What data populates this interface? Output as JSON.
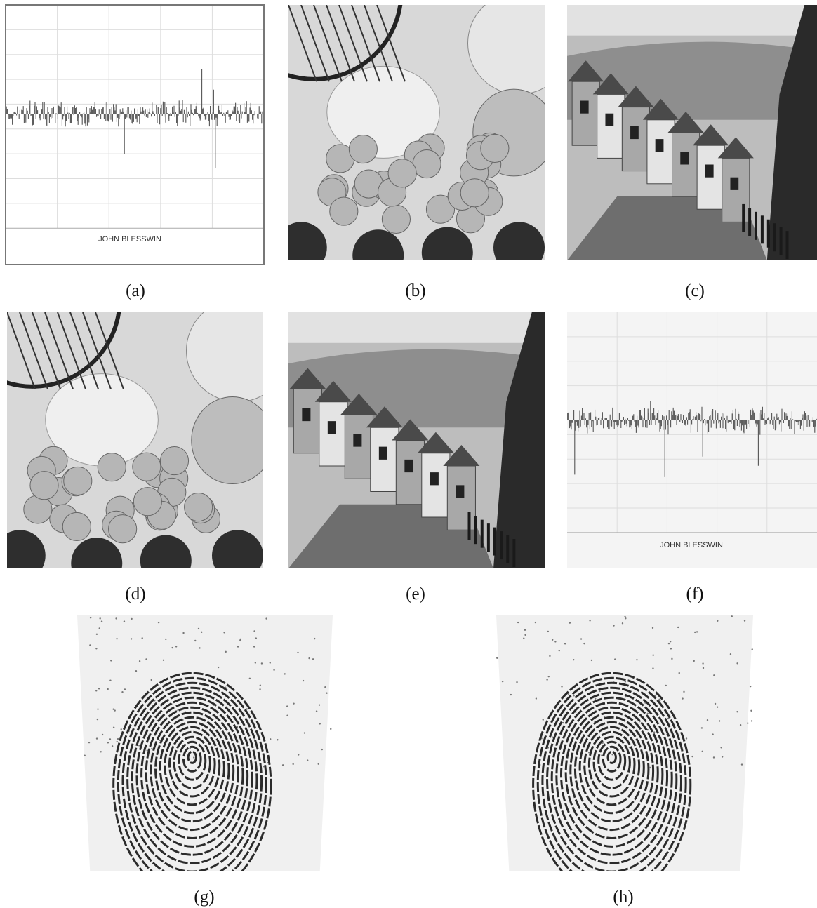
{
  "figure": {
    "panels": [
      {
        "caption": "(a)",
        "image_text": "JOHN BLESSWIN"
      },
      {
        "caption": "(b)"
      },
      {
        "caption": "(c)"
      },
      {
        "caption": "(d)"
      },
      {
        "caption": "(e)"
      },
      {
        "caption": "(f)",
        "image_text": "JOHN BLESSWIN"
      },
      {
        "caption": "(g)"
      },
      {
        "caption": "(h)"
      }
    ]
  }
}
